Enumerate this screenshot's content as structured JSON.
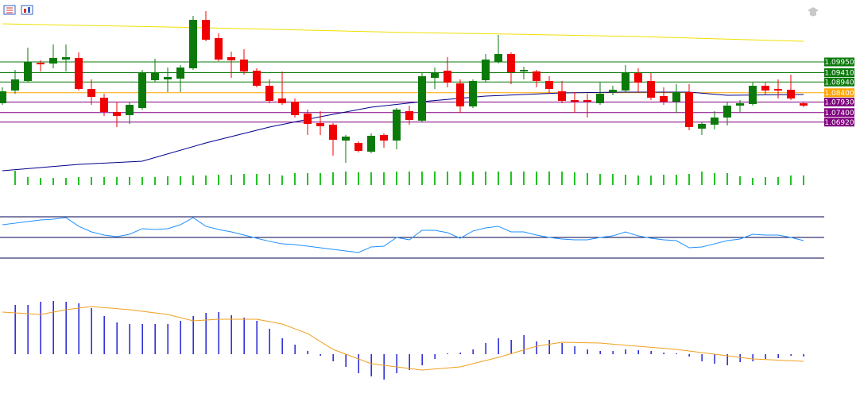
{
  "chart_data": [
    {
      "type": "candlestick",
      "up_color": "#0b7a0b",
      "down_color": "#f00000",
      "ylim": [
        1.0347,
        1.1307
      ],
      "open": [
        1.0787,
        1.0851,
        1.0899,
        1.0991,
        1.0987,
        1.1007,
        1.1015,
        1.0859,
        1.0815,
        1.0743,
        1.0727,
        1.0763,
        1.0903,
        1.0907,
        1.0911,
        1.0963,
        1.1207,
        1.1115,
        1.1019,
        1.1007,
        1.0951,
        1.0875,
        1.0811,
        1.0795,
        1.0735,
        1.0687,
        1.0679,
        1.0599,
        1.0587,
        1.0543,
        1.0627,
        1.0599,
        1.0747,
        1.0699,
        1.0915,
        1.0951,
        1.0887,
        1.0771,
        1.0903,
        1.0995,
        1.1035,
        1.0947,
        1.0947,
        1.0899,
        1.0847,
        1.0803,
        1.0803,
        1.0787,
        1.0843,
        1.0851,
        1.0939,
        1.0899,
        1.0823,
        1.0795,
        1.0843,
        1.0659,
        1.0679,
        1.0715,
        1.0775,
        1.0783,
        1.0875,
        1.0859,
        1.0855,
        1.0787
      ],
      "high": [
        1.0867,
        1.0955,
        1.1067,
        1.1003,
        1.1083,
        1.1083,
        1.1043,
        1.0907,
        1.0835,
        1.0795,
        1.0795,
        1.0955,
        1.1011,
        1.0967,
        1.0979,
        1.1227,
        1.1251,
        1.1139,
        1.1047,
        1.1059,
        1.0963,
        1.0907,
        1.0947,
        1.0811,
        1.0755,
        1.0747,
        1.0687,
        1.0627,
        1.0595,
        1.0635,
        1.0635,
        1.0763,
        1.0775,
        1.0939,
        1.0967,
        1.1019,
        1.0907,
        1.0907,
        1.1035,
        1.1131,
        1.1043,
        1.0971,
        1.0955,
        1.0923,
        1.0899,
        1.0843,
        1.0835,
        1.0891,
        1.0875,
        1.0979,
        1.0963,
        1.0939,
        1.0867,
        1.0883,
        1.0883,
        1.0691,
        1.0747,
        1.0795,
        1.0803,
        1.0891,
        1.0891,
        1.0907,
        1.0931,
        1.0795
      ],
      "low": [
        1.0779,
        1.0835,
        1.0891,
        1.0947,
        1.0963,
        1.0947,
        1.0851,
        1.0779,
        1.0723,
        1.0667,
        1.0683,
        1.0755,
        1.0895,
        1.0843,
        1.0843,
        1.0955,
        1.1099,
        1.0999,
        1.0915,
        1.0931,
        1.0867,
        1.0787,
        1.0779,
        1.0715,
        1.0627,
        1.0627,
        1.0523,
        1.0487,
        1.0539,
        1.0535,
        1.0563,
        1.0555,
        1.0679,
        1.0691,
        1.0859,
        1.0867,
        1.0739,
        1.0763,
        1.0891,
        1.0987,
        1.0883,
        1.0907,
        1.0867,
        1.0835,
        1.0787,
        1.0739,
        1.0715,
        1.0779,
        1.0827,
        1.0843,
        1.0843,
        1.0803,
        1.0779,
        1.0739,
        1.0651,
        1.0627,
        1.0655,
        1.0675,
        1.0739,
        1.0775,
        1.0827,
        1.0811,
        1.0803,
        1.0767
      ],
      "close": [
        1.0847,
        1.0907,
        1.0995,
        1.0983,
        1.1015,
        1.1019,
        1.0859,
        1.0819,
        1.0743,
        1.0723,
        1.0779,
        1.0939,
        1.0943,
        1.0919,
        1.0967,
        1.1207,
        1.1107,
        1.1007,
        1.1003,
        1.0947,
        1.0875,
        1.0799,
        1.0787,
        1.0727,
        1.0683,
        1.0671,
        1.0603,
        1.0619,
        1.0547,
        1.0623,
        1.0599,
        1.0755,
        1.0703,
        1.0923,
        1.0939,
        1.0891,
        1.0771,
        1.0899,
        1.1007,
        1.1035,
        1.0943,
        1.0955,
        1.0899,
        1.0859,
        1.0799,
        1.0795,
        1.0795,
        1.0835,
        1.0855,
        1.0939,
        1.0891,
        1.0815,
        1.0795,
        1.0843,
        1.0667,
        1.0683,
        1.0715,
        1.0775,
        1.0787,
        1.0875,
        1.0851,
        1.0851,
        1.0811,
        1.0775
      ],
      "lines": [
        {
          "color": "#f0e000",
          "x": [
            0,
            16,
            32,
            40,
            50,
            63
          ],
          "values": [
            1.1187,
            1.1167,
            1.1143,
            1.1135,
            1.1123,
            1.1099
          ]
        },
        {
          "color": "#00008b",
          "x": [
            0,
            6,
            11,
            16,
            21,
            25,
            29,
            33,
            38,
            44,
            49,
            54,
            57,
            63
          ],
          "values": [
            1.0447,
            1.0479,
            1.0495,
            1.0587,
            1.0667,
            1.0719,
            1.0767,
            1.0795,
            1.0823,
            1.0839,
            1.0843,
            1.0843,
            1.0827,
            1.0831
          ]
        }
      ],
      "yticks": [
        {
          "value": 1.0995,
          "label": "1.09950"
        },
        {
          "value": 1.0941,
          "label": "1.09410"
        },
        {
          "value": 1.0894,
          "label": "1.08940"
        },
        {
          "value": 1.084,
          "label": "1.08400"
        },
        {
          "value": 1.0793,
          "label": "1.07930"
        },
        {
          "value": 1.074,
          "label": "1.07400"
        },
        {
          "value": 1.0692,
          "label": "1.06920"
        }
      ],
      "ytick_colors": [
        "#0b7a0b",
        "#0b7a0b",
        "#0b7a0b",
        "#ffa500",
        "#800080",
        "#800080",
        "#800080"
      ]
    },
    {
      "type": "bar",
      "color": "#22c322",
      "ylim": [
        0,
        20
      ],
      "values": [
        null,
        18,
        10,
        9,
        9,
        9,
        10,
        10,
        10,
        10,
        10,
        10,
        10,
        11,
        11,
        12,
        12,
        13,
        13,
        14,
        14,
        14,
        12,
        15,
        15,
        15,
        16,
        17,
        16,
        16,
        16,
        17,
        17,
        17,
        17,
        17,
        17,
        17,
        17,
        17,
        17,
        17,
        17,
        17,
        17,
        16,
        15,
        14,
        14,
        13,
        12,
        12,
        13,
        13,
        14,
        17,
        15,
        15,
        11,
        9,
        10,
        10,
        12,
        12
      ]
    },
    {
      "type": "line",
      "color": "#1e90ff",
      "ylim": [
        20,
        80
      ],
      "levels": [
        70,
        50,
        30
      ],
      "level_color": "#000050",
      "values": [
        62.3,
        63.8,
        65.4,
        66.9,
        67.7,
        69.2,
        60.8,
        55.4,
        52.3,
        50.8,
        53.1,
        58.5,
        57.7,
        58.5,
        62.3,
        69.2,
        60.8,
        57.7,
        55.4,
        52.3,
        49.2,
        46.2,
        43.8,
        43.1,
        41.5,
        40,
        38.5,
        36.9,
        35.4,
        40.8,
        41.5,
        50,
        47.7,
        56.9,
        56.9,
        54.6,
        49.2,
        56.2,
        59.2,
        60.8,
        55.4,
        55.4,
        52.3,
        50,
        48.5,
        47.7,
        47.7,
        50,
        51.5,
        55.4,
        51.5,
        49.2,
        47.7,
        46.9,
        40,
        40.8,
        43.8,
        46.9,
        48.5,
        53.1,
        52.3,
        52.3,
        50,
        46.9
      ]
    },
    {
      "type": "macd",
      "ylim": [
        -0.0044,
        0.0086
      ],
      "histogram": {
        "color": "#0000cd",
        "values": [
          null,
          0.0062,
          0.0062,
          0.0066,
          0.0067,
          0.0066,
          0.0064,
          0.0058,
          0.0048,
          0.004,
          0.0038,
          0.0038,
          0.0038,
          0.0038,
          0.0042,
          0.0048,
          0.0052,
          0.0053,
          0.0049,
          0.0046,
          0.0042,
          0.0032,
          0.002,
          0.0012,
          0.0004,
          -0.0002,
          -0.0009,
          -0.0016,
          -0.0024,
          -0.0028,
          -0.0032,
          -0.0024,
          -0.002,
          -0.0014,
          -0.0006,
          0.0001,
          0.0002,
          0.0006,
          0.0014,
          0.002,
          0.0018,
          0.0024,
          0.0016,
          0.0018,
          0.0014,
          0.001,
          0.0006,
          0.0004,
          0.0004,
          0.0006,
          0.0005,
          0.0004,
          0.0002,
          0.0001,
          -0.0003,
          -0.0009,
          -0.0012,
          -0.0014,
          -0.001,
          -0.0009,
          -0.0006,
          -0.0005,
          -0.0002,
          -0.0003
        ]
      },
      "signal": {
        "color": "#f0a020",
        "x": [
          0,
          3,
          5,
          7,
          10,
          13,
          15,
          17,
          20,
          22,
          24,
          26,
          29,
          33,
          36,
          39,
          42,
          44,
          47,
          50,
          53,
          56,
          59,
          63
        ],
        "values": [
          0.0053,
          0.005,
          0.0056,
          0.006,
          0.0056,
          0.005,
          0.0042,
          0.0044,
          0.0044,
          0.0038,
          0.0026,
          0.0006,
          -0.0012,
          -0.002,
          -0.0016,
          -0.0004,
          0.001,
          0.0015,
          0.0014,
          0.001,
          0.0006,
          0,
          -0.0006,
          -0.0009
        ]
      }
    }
  ]
}
